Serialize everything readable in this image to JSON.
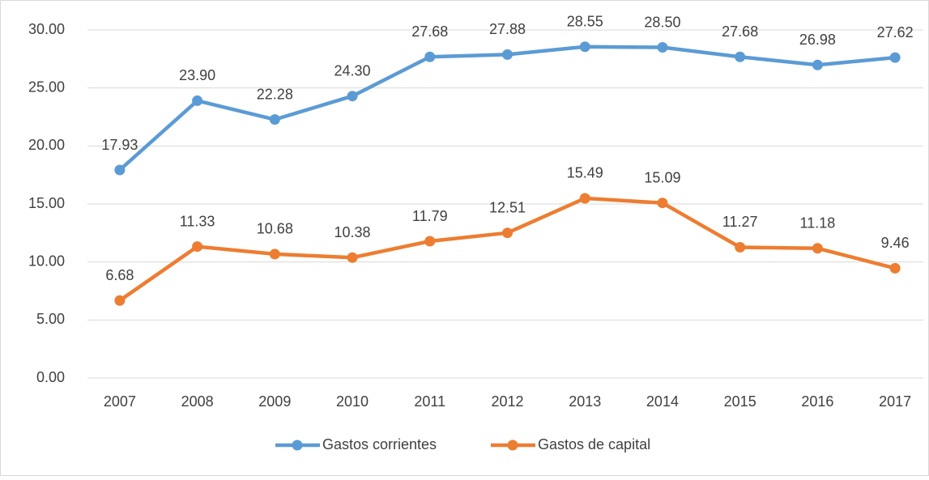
{
  "chart_data": {
    "type": "line",
    "categories": [
      "2007",
      "2008",
      "2009",
      "2010",
      "2011",
      "2012",
      "2013",
      "2014",
      "2015",
      "2016",
      "2017"
    ],
    "series": [
      {
        "name": "Gastos corrientes",
        "color": "#5b9bd5",
        "values": [
          17.93,
          23.9,
          22.28,
          24.3,
          27.68,
          27.88,
          28.55,
          28.5,
          27.68,
          26.98,
          27.62
        ],
        "value_labels": [
          "17.93",
          "23.90",
          "22.28",
          "24.30",
          "27.68",
          "27.88",
          "28.55",
          "28.50",
          "27.68",
          "26.98",
          "27.62"
        ]
      },
      {
        "name": "Gastos de capital",
        "color": "#ed7d31",
        "values": [
          6.68,
          11.33,
          10.68,
          10.38,
          11.79,
          12.51,
          15.49,
          15.09,
          11.27,
          11.18,
          9.46
        ],
        "value_labels": [
          "6.68",
          "11.33",
          "10.68",
          "10.38",
          "11.79",
          "12.51",
          "15.49",
          "15.09",
          "11.27",
          "11.18",
          "9.46"
        ]
      }
    ],
    "ylim": [
      0,
      30
    ],
    "yticks": [
      {
        "value": 0,
        "label": "0.00"
      },
      {
        "value": 5,
        "label": "5.00"
      },
      {
        "value": 10,
        "label": "10.00"
      },
      {
        "value": 15,
        "label": "15.00"
      },
      {
        "value": 20,
        "label": "20.00"
      },
      {
        "value": 25,
        "label": "25.00"
      },
      {
        "value": 30,
        "label": "30.00"
      }
    ],
    "grid": true,
    "legend": "bottom"
  }
}
